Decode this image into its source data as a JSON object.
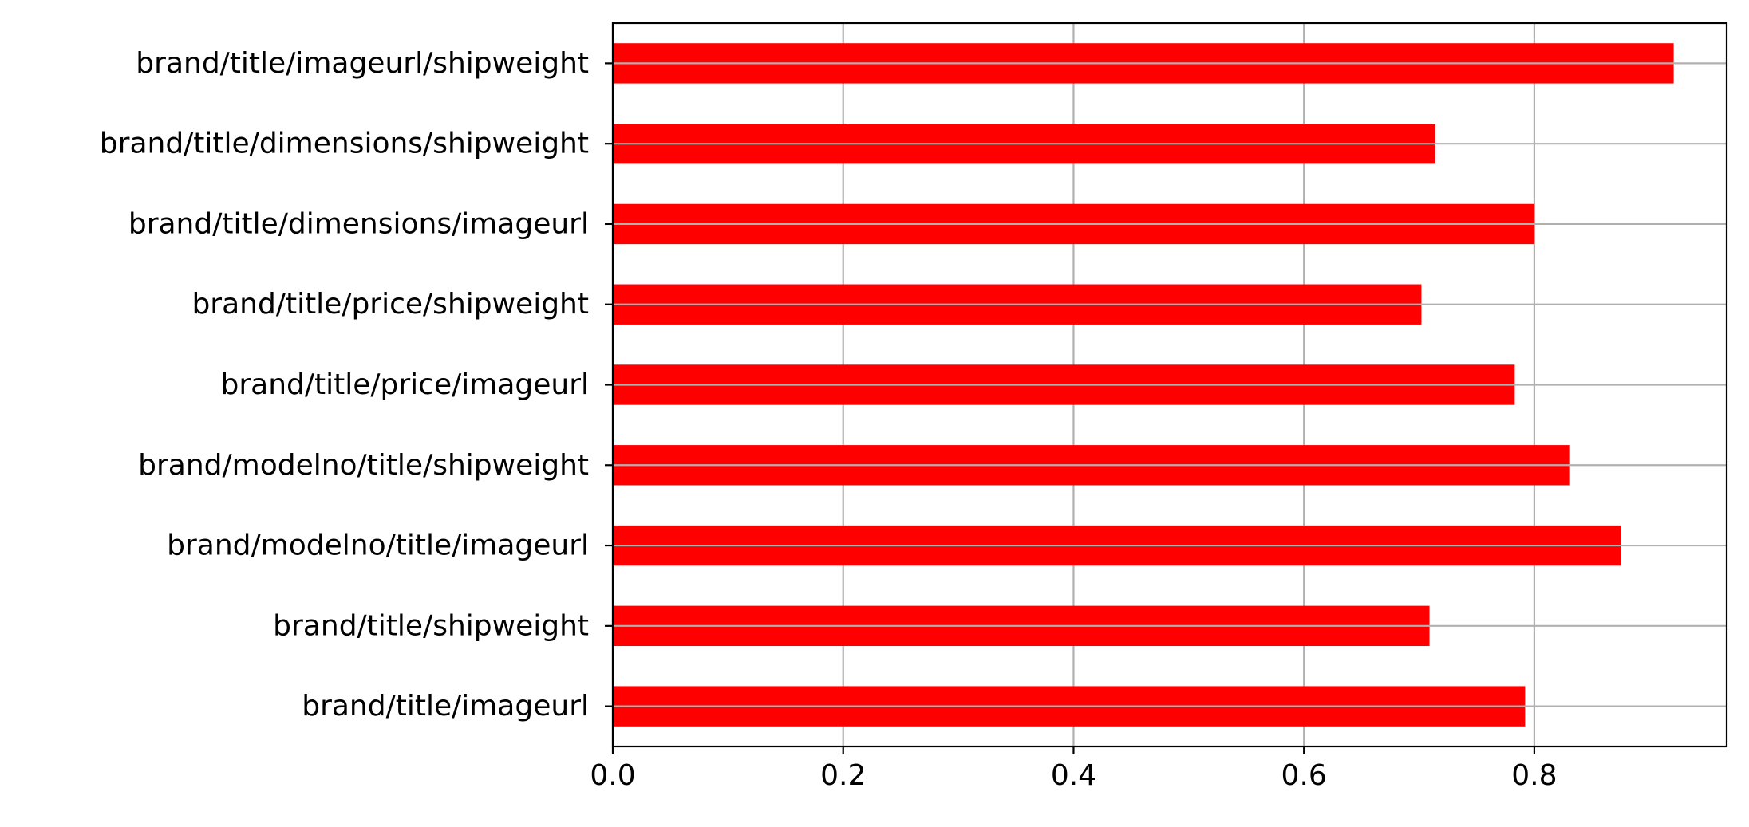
{
  "chart_data": {
    "type": "bar",
    "orientation": "horizontal",
    "title": "",
    "xlabel": "",
    "ylabel": "",
    "categories": [
      "brand/title/imageurl",
      "brand/title/shipweight",
      "brand/modelno/title/imageurl",
      "brand/modelno/title/shipweight",
      "brand/title/price/imageurl",
      "brand/title/price/shipweight",
      "brand/title/dimensions/imageurl",
      "brand/title/dimensions/shipweight",
      "brand/title/imageurl/shipweight"
    ],
    "values": [
      0.792,
      0.709,
      0.875,
      0.831,
      0.783,
      0.702,
      0.8,
      0.714,
      0.921
    ],
    "xlim": [
      0,
      0.967
    ],
    "xticks": [
      0.0,
      0.2,
      0.4,
      0.6,
      0.8
    ],
    "xtick_labels": [
      "0.0",
      "0.2",
      "0.4",
      "0.6",
      "0.8"
    ],
    "grid": true,
    "legend": "none",
    "bar_color": "#ff0000",
    "grid_color": "#b0b0b0"
  }
}
